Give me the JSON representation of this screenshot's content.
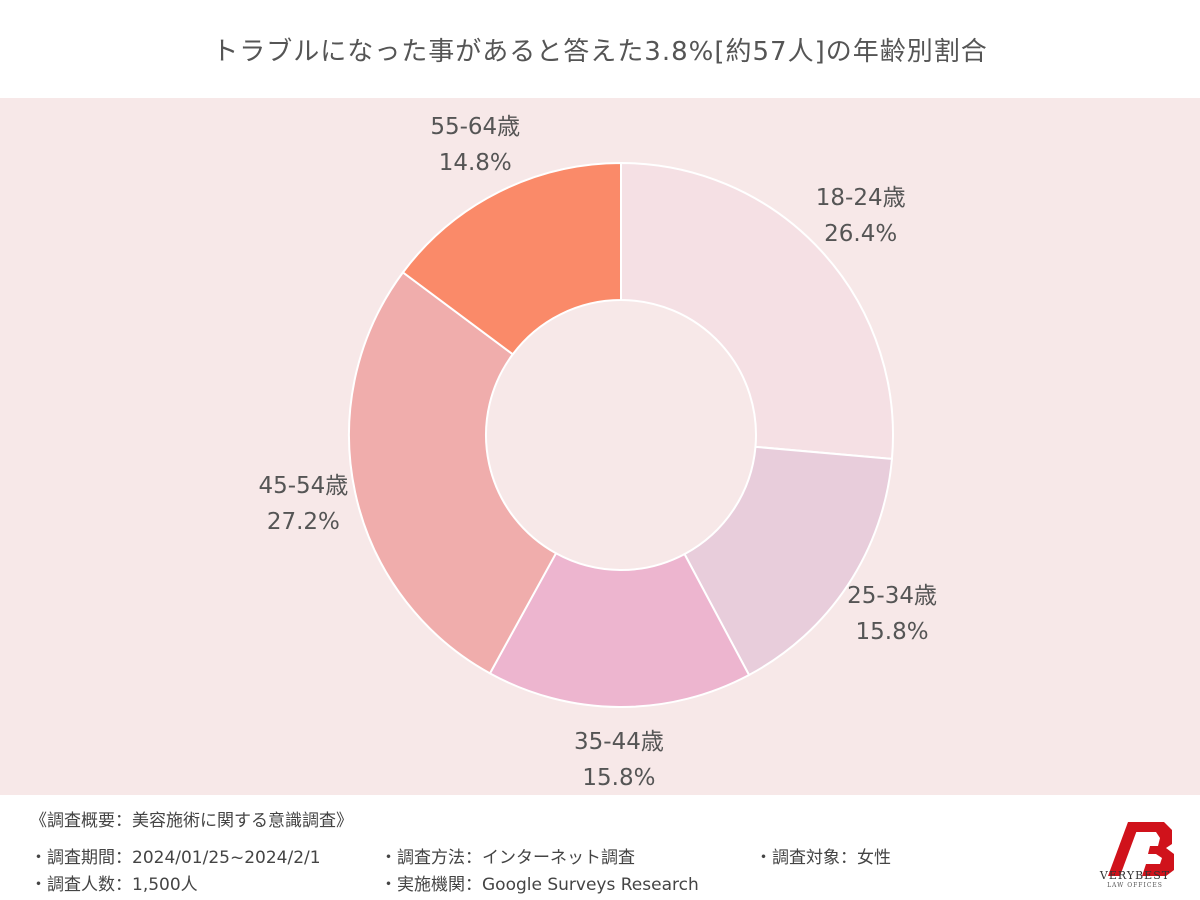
{
  "title": "トラブルになった事があると答えた3.8%[約57人]の年齢別割合",
  "chart_data": {
    "type": "pie",
    "donut": true,
    "categories": [
      "18-24歳",
      "25-34歳",
      "35-44歳",
      "45-54歳",
      "55-64歳"
    ],
    "values": [
      26.4,
      15.8,
      15.8,
      27.2,
      14.8
    ],
    "value_labels": [
      "26.4%",
      "15.8%",
      "15.8%",
      "27.2%",
      "14.8%"
    ],
    "colors": [
      "#f5e0e4",
      "#e8cddb",
      "#edb5cf",
      "#f0adac",
      "#fa8a69"
    ],
    "start": "12 o'clock",
    "direction": "clockwise"
  },
  "footer": {
    "summary": "《調査概要：美容施術に関する意識調査》",
    "period": "・調査期間：2024/01/25~2024/2/1",
    "count": "・調査人数：1,500人",
    "method": "・調査方法：インターネット調査",
    "agency": "・実施機関：Google Surveys  Research",
    "target": "・調査対象：女性"
  },
  "logo": {
    "name": "VERYBEST",
    "sub": "LAW OFFICES"
  }
}
